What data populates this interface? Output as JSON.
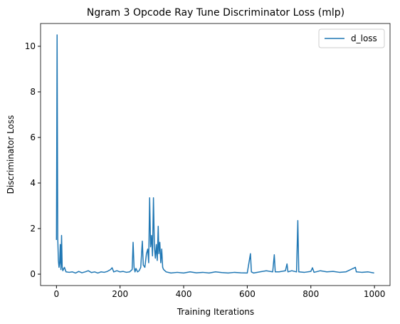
{
  "chart_data": {
    "type": "line",
    "title": "Ngram 3 Opcode Ray Tune Discriminator Loss (mlp)",
    "xlabel": "Training Iterations",
    "ylabel": "Discriminator Loss",
    "legend": "upper right",
    "grid": false,
    "xlim": [
      -50,
      1049
    ],
    "ylim": [
      -0.5,
      11.0
    ],
    "xticks": [
      0,
      200,
      400,
      600,
      800,
      1000
    ],
    "yticks": [
      0,
      2,
      4,
      6,
      8,
      10
    ],
    "series": [
      {
        "name": "d_loss",
        "color": "#1f77b4",
        "x": [
          0,
          2,
          4,
          6,
          8,
          10,
          12,
          14,
          16,
          18,
          20,
          25,
          30,
          40,
          50,
          60,
          70,
          80,
          90,
          100,
          110,
          120,
          130,
          140,
          150,
          160,
          170,
          175,
          180,
          190,
          200,
          210,
          220,
          230,
          238,
          241,
          244,
          247,
          250,
          255,
          260,
          265,
          270,
          273,
          278,
          283,
          287,
          290,
          293,
          296,
          299,
          302,
          305,
          308,
          311,
          314,
          317,
          320,
          322,
          325,
          328,
          331,
          334,
          337,
          345,
          360,
          380,
          400,
          420,
          440,
          460,
          480,
          500,
          520,
          540,
          560,
          580,
          600,
          610,
          613,
          620,
          640,
          660,
          680,
          685,
          688,
          700,
          720,
          725,
          728,
          740,
          755,
          759,
          762,
          780,
          800,
          805,
          810,
          830,
          850,
          870,
          890,
          910,
          940,
          943,
          960,
          980,
          999
        ],
        "values": [
          1.5,
          10.5,
          1.6,
          0.6,
          0.3,
          0.5,
          1.3,
          0.2,
          1.7,
          0.3,
          0.15,
          0.3,
          0.1,
          0.08,
          0.1,
          0.05,
          0.12,
          0.06,
          0.1,
          0.15,
          0.07,
          0.1,
          0.05,
          0.1,
          0.08,
          0.12,
          0.2,
          0.28,
          0.1,
          0.15,
          0.1,
          0.12,
          0.08,
          0.1,
          0.2,
          1.4,
          0.3,
          0.1,
          0.25,
          0.1,
          0.15,
          0.3,
          1.45,
          0.4,
          0.3,
          0.9,
          1.1,
          0.5,
          3.35,
          1.2,
          1.7,
          0.8,
          3.35,
          1.2,
          0.7,
          1.3,
          0.6,
          2.1,
          0.9,
          1.4,
          0.5,
          1.1,
          0.3,
          0.2,
          0.1,
          0.05,
          0.08,
          0.05,
          0.1,
          0.06,
          0.08,
          0.05,
          0.1,
          0.07,
          0.05,
          0.08,
          0.06,
          0.05,
          0.9,
          0.1,
          0.05,
          0.1,
          0.15,
          0.1,
          0.85,
          0.1,
          0.1,
          0.15,
          0.45,
          0.1,
          0.15,
          0.1,
          2.35,
          0.1,
          0.08,
          0.12,
          0.28,
          0.08,
          0.15,
          0.1,
          0.12,
          0.08,
          0.1,
          0.3,
          0.1,
          0.08,
          0.1,
          0.05
        ]
      }
    ]
  }
}
